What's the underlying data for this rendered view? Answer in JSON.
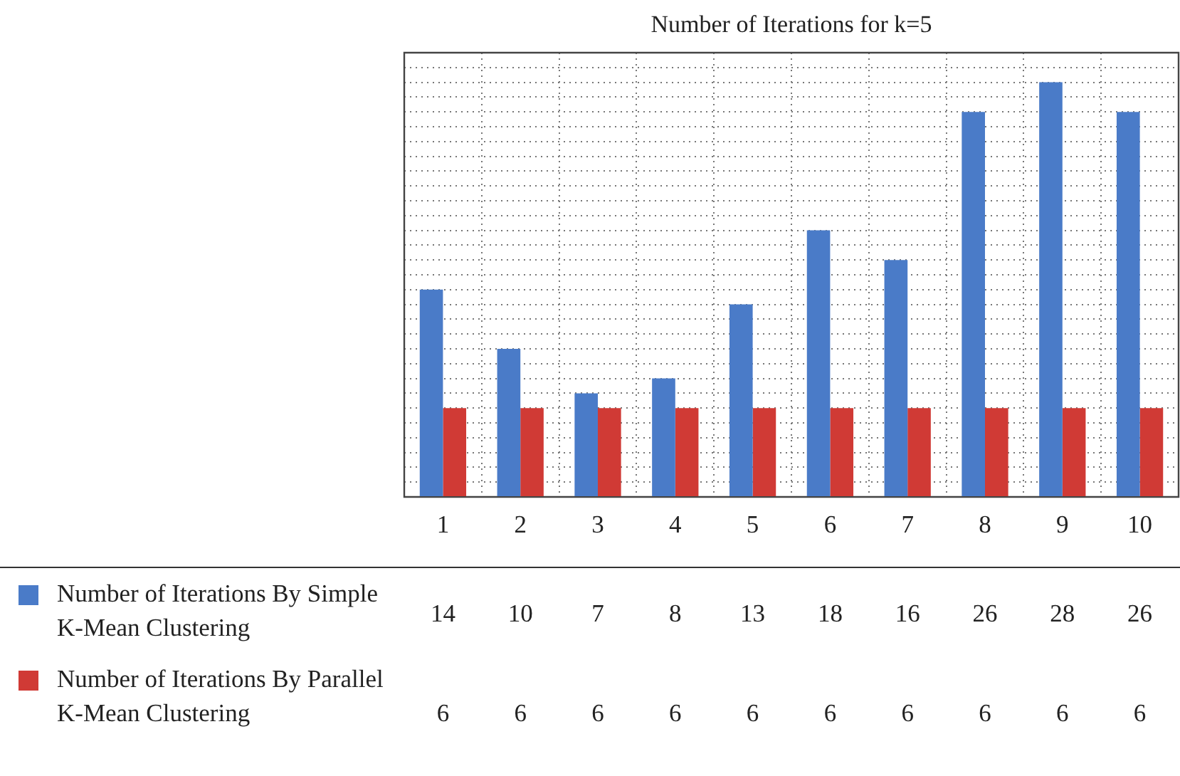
{
  "chart_data": {
    "type": "bar",
    "title": "Number of Iterations for k=5",
    "categories": [
      "1",
      "2",
      "3",
      "4",
      "5",
      "6",
      "7",
      "8",
      "9",
      "10"
    ],
    "series": [
      {
        "name": "Number of Iterations By Simple K-Mean Clustering",
        "color": "#4a7bc8",
        "values": [
          14,
          10,
          7,
          8,
          13,
          18,
          16,
          26,
          28,
          26
        ]
      },
      {
        "name": "Number of Iterations By Parallel K-Mean Clustering",
        "color": "#d03a35",
        "values": [
          6,
          6,
          6,
          6,
          6,
          6,
          6,
          6,
          6,
          6
        ]
      }
    ],
    "ylim": [
      0,
      30
    ],
    "yticks": [
      {
        "value": 0,
        "label": null
      },
      {
        "value": 1,
        "label": null
      },
      {
        "value": 2,
        "label": null
      },
      {
        "value": 3,
        "label": null
      },
      {
        "value": 4,
        "label": null
      },
      {
        "value": 5,
        "label": null
      },
      {
        "value": 6,
        "label": null
      },
      {
        "value": 7,
        "label": null
      },
      {
        "value": 8,
        "label": null
      },
      {
        "value": 9,
        "label": null
      },
      {
        "value": 10,
        "label": null
      },
      {
        "value": 11,
        "label": null
      },
      {
        "value": 12,
        "label": null
      },
      {
        "value": 13,
        "label": null
      },
      {
        "value": 14,
        "label": null
      },
      {
        "value": 15,
        "label": null
      },
      {
        "value": 16,
        "label": null
      },
      {
        "value": 17,
        "label": null
      },
      {
        "value": 18,
        "label": null
      },
      {
        "value": 19,
        "label": null
      },
      {
        "value": 20,
        "label": null
      },
      {
        "value": 21,
        "label": null
      },
      {
        "value": 22,
        "label": null
      },
      {
        "value": 23,
        "label": null
      },
      {
        "value": 24,
        "label": null
      },
      {
        "value": 25,
        "label": null
      },
      {
        "value": 26,
        "label": null
      },
      {
        "value": 27,
        "label": null
      },
      {
        "value": 28,
        "label": null
      },
      {
        "value": 29,
        "label": null
      },
      {
        "value": 30,
        "label": null
      }
    ],
    "tick_labels": "x",
    "grid": true,
    "legend": "bottom left",
    "data_labels": true
  }
}
